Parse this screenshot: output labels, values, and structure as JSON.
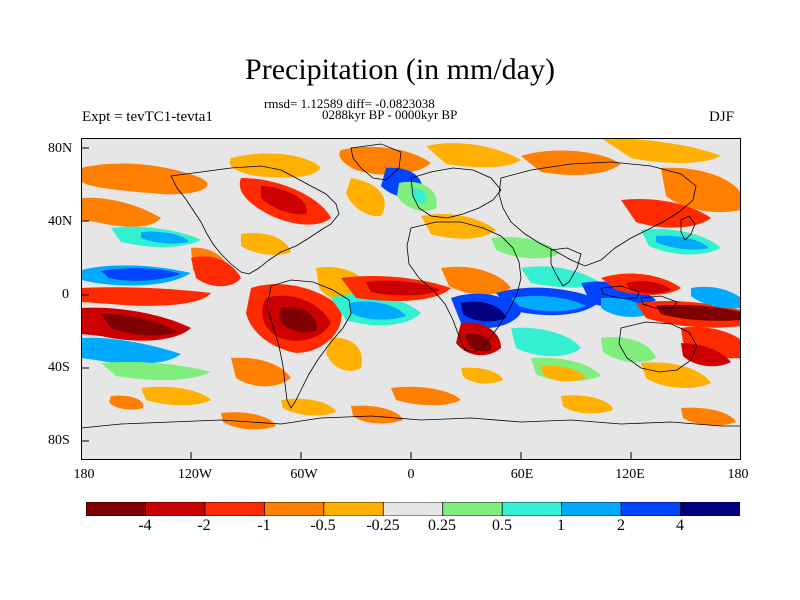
{
  "title": "Precipitation (in mm/day)",
  "stats": "rmsd= 1.12589 diff= -0.0823038",
  "period": "0288kyr BP - 0000kyr BP",
  "experiment": "Expt = tevTC1-tevta1",
  "season": "DJF",
  "lat_labels": [
    "80N",
    "40N",
    "0",
    "40S",
    "80S"
  ],
  "lon_labels": [
    "180",
    "120W",
    "60W",
    "0",
    "60E",
    "120E",
    "180"
  ],
  "colorbar": {
    "colors": [
      "#7f0000",
      "#cc0000",
      "#ff2a00",
      "#ff7f00",
      "#ffb000",
      "#e6e6e6",
      "#7fee7f",
      "#33f0d0",
      "#00aaff",
      "#0044ff",
      "#000080"
    ],
    "labels": [
      "-4",
      "-2",
      "-1",
      "-0.5",
      "-0.25",
      "0.25",
      "0.5",
      "1",
      "2",
      "4"
    ]
  }
}
